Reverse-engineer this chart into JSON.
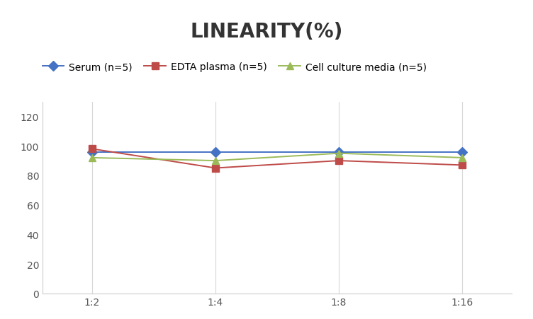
{
  "title": "LINEARITY(%)",
  "x_labels": [
    "1:2",
    "1:4",
    "1:8",
    "1:16"
  ],
  "x_positions": [
    0,
    1,
    2,
    3
  ],
  "series": [
    {
      "label": "Serum (n=5)",
      "color": "#4472C4",
      "marker": "D",
      "values": [
        96,
        96,
        96,
        96
      ]
    },
    {
      "label": "EDTA plasma (n=5)",
      "color": "#BE4B48",
      "marker": "s",
      "values": [
        98,
        85,
        90,
        87
      ]
    },
    {
      "label": "Cell culture media (n=5)",
      "color": "#9BBB59",
      "marker": "^",
      "values": [
        92,
        90,
        95,
        92
      ]
    }
  ],
  "ylim": [
    0,
    130
  ],
  "yticks": [
    0,
    20,
    40,
    60,
    80,
    100,
    120
  ],
  "background_color": "#ffffff",
  "title_fontsize": 20,
  "legend_fontsize": 10,
  "tick_fontsize": 10,
  "grid_color": "#d8d8d8",
  "linewidth": 1.4,
  "markersize": 7
}
